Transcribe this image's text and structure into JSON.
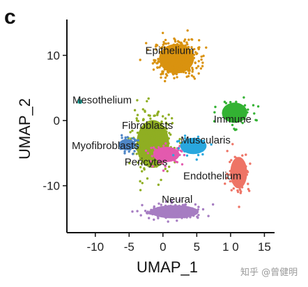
{
  "panel_label": "c",
  "watermark": "知乎 @曾健明",
  "chart_data": {
    "type": "scatter",
    "xlabel": "UMAP_1",
    "ylabel": "UMAP_2",
    "xlim": [
      -14.2,
      16.5
    ],
    "ylim": [
      -17.2,
      15.5
    ],
    "xticks": [
      -10,
      -5,
      0,
      5,
      10,
      15
    ],
    "xtick_labels": [
      "-10",
      "-5",
      "0",
      "5",
      "1 0",
      "15"
    ],
    "yticks": [
      10,
      0,
      -10
    ],
    "ytick_labels": [
      "10",
      "0",
      "-10"
    ],
    "grid": false,
    "legend": "none",
    "clusters": [
      {
        "name": "Epithelium",
        "color": "#D9920F",
        "center": [
          2.0,
          9.5
        ],
        "spread": [
          3.3,
          2.9
        ],
        "points": 330,
        "label_at": [
          1.0,
          10.2
        ]
      },
      {
        "name": "Mesothelium",
        "color": "#1FA99E",
        "center": [
          -12.3,
          2.9
        ],
        "spread": [
          0.35,
          0.3
        ],
        "points": 10,
        "label_at": [
          -9.0,
          2.6
        ]
      },
      {
        "name": "Immune",
        "color": "#33B233",
        "center": [
          10.6,
          1.2
        ],
        "spread": [
          2.4,
          2.0
        ],
        "points": 80,
        "label_at": [
          10.3,
          -0.3
        ]
      },
      {
        "name": "Fibroblasts",
        "color": "#8FAE22",
        "center": [
          -1.5,
          -3.6
        ],
        "spread": [
          3.1,
          4.7
        ],
        "points": 240,
        "label_at": [
          -2.3,
          -1.3
        ]
      },
      {
        "name": "Myofibroblasts",
        "color": "#4F86C6",
        "center": [
          -5.3,
          -3.7
        ],
        "spread": [
          1.6,
          1.1
        ],
        "points": 50,
        "label_at": [
          -8.5,
          -4.4
        ]
      },
      {
        "name": "Pericytes",
        "color": "#E35AAE",
        "center": [
          0.5,
          -5.2
        ],
        "spread": [
          2.5,
          1.5
        ],
        "points": 80,
        "label_at": [
          -2.5,
          -6.9
        ]
      },
      {
        "name": "Muscularis",
        "color": "#29A7DE",
        "center": [
          4.5,
          -3.9
        ],
        "spread": [
          2.5,
          1.6
        ],
        "points": 70,
        "label_at": [
          6.3,
          -3.5
        ]
      },
      {
        "name": "Endothelium",
        "color": "#EE7466",
        "center": [
          11.2,
          -8.0
        ],
        "spread": [
          1.6,
          3.1
        ],
        "points": 90,
        "label_at": [
          7.3,
          -9.0
        ]
      },
      {
        "name": "Neural",
        "color": "#A67DC2",
        "center": [
          1.7,
          -14.0
        ],
        "spread": [
          4.6,
          1.3
        ],
        "points": 140,
        "label_at": [
          2.1,
          -12.6
        ]
      }
    ]
  }
}
